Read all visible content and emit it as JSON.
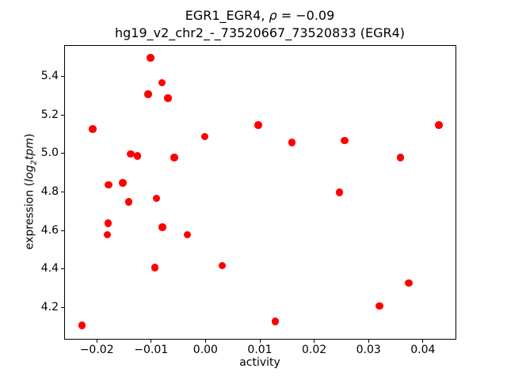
{
  "chart_data": {
    "type": "scatter",
    "title": "EGR1_EGR4, ρ = −0.09",
    "title_parts": {
      "prefix": "EGR1_EGR4, ",
      "rho": "ρ",
      "suffix": " = −0.09"
    },
    "subtitle": "hg19_v2_chr2_-_73520667_73520833 (EGR4)",
    "xlabel": "activity",
    "ylabel": "expression (log₂tpm)",
    "ylabel_parts": {
      "prefix": "expression (",
      "log": "log",
      "sub": "2",
      "tpm": "tpm",
      "suffix": ")"
    },
    "marker_color": "#ff0000",
    "axis_color": "#000000",
    "background_color": "#ffffff",
    "grid": false,
    "legend": null,
    "xlim": [
      -0.026,
      0.046
    ],
    "ylim": [
      4.037,
      5.563
    ],
    "xticks": {
      "values": [
        -0.02,
        -0.01,
        0.0,
        0.01,
        0.02,
        0.03,
        0.04
      ],
      "labels": [
        "−0.02",
        "−0.01",
        "0.00",
        "0.01",
        "0.02",
        "0.03",
        "0.04"
      ]
    },
    "yticks": {
      "values": [
        4.2,
        4.4,
        4.6,
        4.8,
        5.0,
        5.2,
        5.4
      ],
      "labels": [
        "4.2",
        "4.4",
        "4.6",
        "4.8",
        "5.0",
        "5.2",
        "5.4"
      ]
    },
    "points": [
      [
        -0.0102,
        5.5
      ],
      [
        -0.0081,
        5.37
      ],
      [
        -0.0106,
        5.31
      ],
      [
        -0.007,
        5.29
      ],
      [
        -0.0208,
        5.13
      ],
      [
        0.0096,
        5.15
      ],
      [
        -0.0002,
        5.09
      ],
      [
        -0.0138,
        5.0
      ],
      [
        -0.0126,
        4.99
      ],
      [
        -0.0058,
        4.98
      ],
      [
        -0.0179,
        4.84
      ],
      [
        -0.0153,
        4.85
      ],
      [
        -0.0142,
        4.75
      ],
      [
        -0.0091,
        4.77
      ],
      [
        -0.018,
        4.64
      ],
      [
        -0.0181,
        4.58
      ],
      [
        -0.008,
        4.62
      ],
      [
        -0.0034,
        4.58
      ],
      [
        -0.0094,
        4.41
      ],
      [
        0.003,
        4.42
      ],
      [
        -0.0228,
        4.11
      ],
      [
        0.0158,
        5.06
      ],
      [
        0.0255,
        5.07
      ],
      [
        0.0429,
        5.15
      ],
      [
        0.0358,
        4.98
      ],
      [
        0.0246,
        4.8
      ],
      [
        0.0373,
        4.33
      ],
      [
        0.0319,
        4.21
      ],
      [
        0.0128,
        4.13
      ]
    ]
  }
}
